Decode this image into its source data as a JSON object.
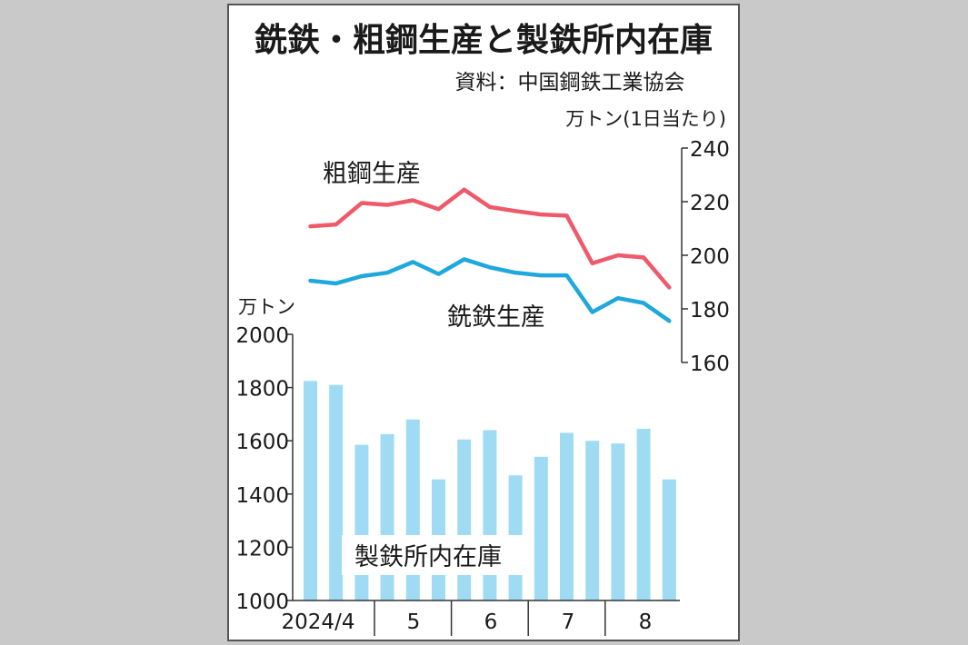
{
  "chart_data": {
    "title": "銑鉄・粗鋼生産と製鉄所内在庫",
    "source": "資料：中国鋼鉄工業協会",
    "production": {
      "type": "line",
      "unit": "万トン(1日当たり)",
      "ylim": [
        160,
        240
      ],
      "yticks": [
        "240",
        "220",
        "200",
        "180",
        "160"
      ],
      "series": [
        {
          "name": "粗鋼生産",
          "color": "#ef5a6a",
          "values": [
            210.8,
            211.5,
            219.5,
            218.8,
            220.5,
            217.2,
            224.5,
            218.0,
            216.5,
            215.2,
            214.8,
            197.0,
            200.0,
            199.2,
            188.0
          ]
        },
        {
          "name": "銑鉄生産",
          "color": "#1ea8db",
          "values": [
            190.5,
            189.5,
            192.2,
            193.5,
            197.5,
            193.0,
            198.5,
            195.5,
            193.5,
            192.5,
            192.5,
            178.8,
            184.0,
            182.2,
            175.5
          ]
        }
      ]
    },
    "inventory": {
      "type": "bar",
      "name": "製鉄所内在庫",
      "unit": "万トン",
      "color": "#9fdcf4",
      "ylim": [
        1000,
        2000
      ],
      "yticks": [
        "2000",
        "1800",
        "1600",
        "1400",
        "1200",
        "1000"
      ],
      "values": [
        1825,
        1810,
        1585,
        1625,
        1680,
        1455,
        1605,
        1640,
        1470,
        1540,
        1630,
        1600,
        1590,
        1645,
        1455
      ]
    },
    "x_labels": [
      "2024/4",
      "5",
      "6",
      "7",
      "8"
    ]
  }
}
